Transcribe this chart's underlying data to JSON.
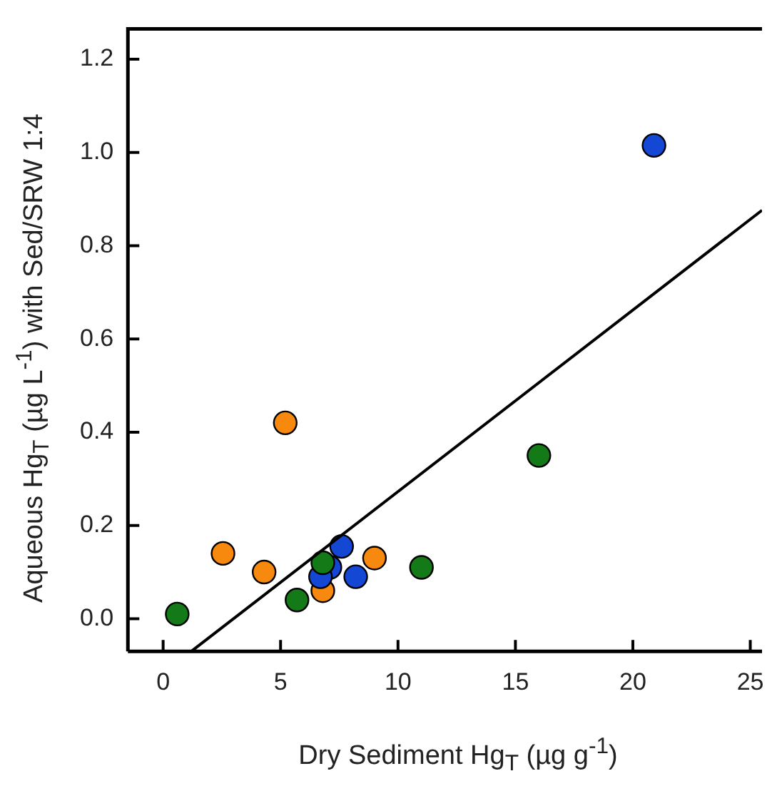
{
  "chart_data": {
    "type": "scatter",
    "xlabel": "Dry Sediment Hg$_{T}$ (µg g$^{-1}$)",
    "ylabel": "Aqueous Hg$_{T}$ (µg L$^{-1}$) with Sed/SRW 1:4",
    "xlim": [
      -1.5,
      25.5
    ],
    "xticks": [
      0,
      5,
      10,
      15,
      20,
      25
    ],
    "ylim": [
      -0.07,
      1.265
    ],
    "yticks": [
      {
        "value": 0,
        "label": "0.0"
      },
      0.2,
      0.4,
      0.6,
      0.8,
      {
        "value": 1,
        "label": "1.0"
      },
      1.2
    ],
    "grid": false,
    "legend": false,
    "marker": "circle",
    "series": [
      {
        "color": "#f7890f",
        "x": [
          5.2,
          2.55,
          4.3,
          9.0,
          6.8
        ],
        "values": [
          0.42,
          0.14,
          0.1,
          0.13,
          0.06
        ]
      },
      {
        "color": "#1447d4",
        "x": [
          7.6,
          7.1,
          6.7,
          8.2,
          20.9
        ],
        "values": [
          0.155,
          0.11,
          0.09,
          0.09,
          1.015
        ]
      },
      {
        "color": "#137a17",
        "x": [
          16.0,
          6.8,
          11.0,
          5.7,
          0.6
        ],
        "values": [
          0.35,
          0.12,
          0.11,
          0.04,
          0.01
        ]
      },
      {
        "type": "line",
        "color": "#000000",
        "marker": "none",
        "line_style": "solid",
        "x": [
          1.2,
          25.5
        ],
        "values": [
          -0.07,
          0.876
        ]
      }
    ]
  }
}
